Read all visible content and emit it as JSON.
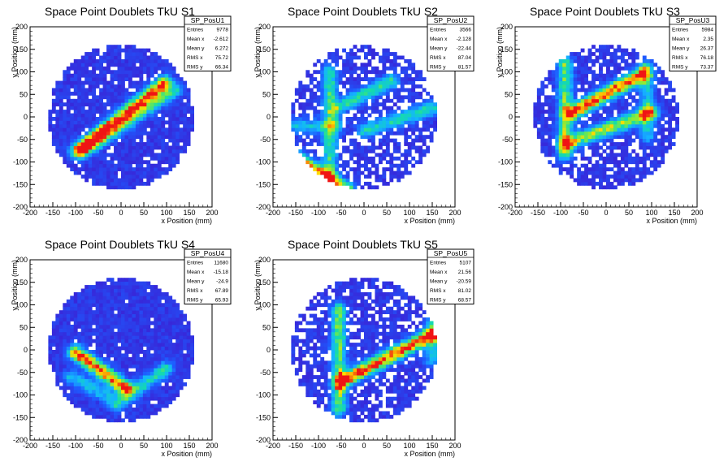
{
  "chart_data": [
    {
      "type": "heatmap",
      "title": "Space Point Doublets TkU S1",
      "xlabel": "x Position (mm)",
      "ylabel": "y Position (mm)",
      "xlim": [
        -200,
        200
      ],
      "ylim": [
        -200,
        200
      ],
      "xticks": [
        "-200",
        "-150",
        "-100",
        "-50",
        "0",
        "50",
        "100",
        "150",
        "200"
      ],
      "yticks": [
        "-200",
        "-150",
        "-100",
        "-50",
        "0",
        "50",
        "100",
        "150",
        "200"
      ],
      "detector_radius": 160,
      "bands": [
        {
          "x1": -95,
          "y1": -75,
          "x2": 95,
          "y2": 75,
          "weight": 1.0
        },
        {
          "x1": -80,
          "y1": -75,
          "x2": 120,
          "y2": 60,
          "weight": 0.45
        }
      ],
      "stats": {
        "name": "SP_PosU1",
        "rows": [
          {
            "label": "Entries",
            "value": "9778"
          },
          {
            "label": "Mean x",
            "value": "-2.612"
          },
          {
            "label": "Mean y",
            "value": "6.272"
          },
          {
            "label": "RMS x",
            "value": "75.72"
          },
          {
            "label": "RMS y",
            "value": "66.34"
          }
        ]
      }
    },
    {
      "type": "heatmap",
      "title": "Space Point Doublets TkU S2",
      "xlabel": "x Position (mm)",
      "ylabel": "y Position (mm)",
      "xlim": [
        -200,
        200
      ],
      "ylim": [
        -200,
        200
      ],
      "xticks": [
        "-200",
        "-150",
        "-100",
        "-50",
        "0",
        "50",
        "100",
        "150",
        "200"
      ],
      "yticks": [
        "-200",
        "-150",
        "-100",
        "-50",
        "0",
        "50",
        "100",
        "150",
        "200"
      ],
      "detector_radius": 160,
      "bands": [
        {
          "x1": -150,
          "y1": -90,
          "x2": -40,
          "y2": -160,
          "weight": 0.9
        },
        {
          "x1": -75,
          "y1": -140,
          "x2": -75,
          "y2": 100,
          "weight": 0.5
        },
        {
          "x1": -60,
          "y1": 20,
          "x2": 60,
          "y2": 80,
          "weight": 0.5
        },
        {
          "x1": 0,
          "y1": -30,
          "x2": 150,
          "y2": 20,
          "weight": 0.45
        },
        {
          "x1": -150,
          "y1": -20,
          "x2": -60,
          "y2": -20,
          "weight": 0.35
        }
      ],
      "stats": {
        "name": "SP_PosU2",
        "rows": [
          {
            "label": "Entries",
            "value": "3566"
          },
          {
            "label": "Mean x",
            "value": "-2.128"
          },
          {
            "label": "Mean y",
            "value": "-22.44"
          },
          {
            "label": "RMS x",
            "value": "87.04"
          },
          {
            "label": "RMS y",
            "value": "81.57"
          }
        ]
      }
    },
    {
      "type": "heatmap",
      "title": "Space Point Doublets TkU S3",
      "xlabel": "x Position (mm)",
      "ylabel": "y Position (mm)",
      "xlim": [
        -200,
        200
      ],
      "ylim": [
        -200,
        200
      ],
      "xticks": [
        "-200",
        "-150",
        "-100",
        "-50",
        "0",
        "50",
        "100",
        "150",
        "200"
      ],
      "yticks": [
        "-200",
        "-150",
        "-100",
        "-50",
        "0",
        "50",
        "100",
        "150",
        "200"
      ],
      "detector_radius": 160,
      "bands": [
        {
          "x1": -75,
          "y1": 10,
          "x2": 80,
          "y2": 95,
          "weight": 1.0
        },
        {
          "x1": -90,
          "y1": -60,
          "x2": 100,
          "y2": 10,
          "weight": 0.7
        },
        {
          "x1": -90,
          "y1": -80,
          "x2": -90,
          "y2": 120,
          "weight": 0.6
        },
        {
          "x1": 90,
          "y1": -40,
          "x2": 90,
          "y2": 110,
          "weight": 0.4
        }
      ],
      "stats": {
        "name": "SP_PosU3",
        "rows": [
          {
            "label": "Entries",
            "value": "5984"
          },
          {
            "label": "Mean x",
            "value": "2.35"
          },
          {
            "label": "Mean y",
            "value": "26.37"
          },
          {
            "label": "RMS x",
            "value": "76.18"
          },
          {
            "label": "RMS y",
            "value": "73.37"
          }
        ]
      }
    },
    {
      "type": "heatmap",
      "title": "Space Point Doublets TkU S4",
      "xlabel": "x Position (mm)",
      "ylabel": "y Position (mm)",
      "xlim": [
        -200,
        200
      ],
      "ylim": [
        -200,
        200
      ],
      "xticks": [
        "-200",
        "-150",
        "-100",
        "-50",
        "0",
        "50",
        "100",
        "150",
        "200"
      ],
      "yticks": [
        "-200",
        "-150",
        "-100",
        "-50",
        "0",
        "50",
        "100",
        "150",
        "200"
      ],
      "detector_radius": 160,
      "bands": [
        {
          "x1": -100,
          "y1": -5,
          "x2": 10,
          "y2": -85,
          "weight": 1.0
        },
        {
          "x1": -10,
          "y1": -120,
          "x2": 100,
          "y2": -40,
          "weight": 0.45
        },
        {
          "x1": -110,
          "y1": -60,
          "x2": -30,
          "y2": -100,
          "weight": 0.35
        }
      ],
      "stats": {
        "name": "SP_PosU4",
        "rows": [
          {
            "label": "Entries",
            "value": "11680"
          },
          {
            "label": "Mean x",
            "value": "-15.18"
          },
          {
            "label": "Mean y",
            "value": "-24.9"
          },
          {
            "label": "RMS x",
            "value": "67.89"
          },
          {
            "label": "RMS y",
            "value": "65.93"
          }
        ]
      }
    },
    {
      "type": "heatmap",
      "title": "Space Point Doublets TkU S5",
      "xlabel": "x Position (mm)",
      "ylabel": "y Position (mm)",
      "xlim": [
        -200,
        200
      ],
      "ylim": [
        -200,
        200
      ],
      "xticks": [
        "-200",
        "-150",
        "-100",
        "-50",
        "0",
        "50",
        "100",
        "150",
        "200"
      ],
      "yticks": [
        "-200",
        "-150",
        "-100",
        "-50",
        "0",
        "50",
        "100",
        "150",
        "200"
      ],
      "detector_radius": 160,
      "bands": [
        {
          "x1": -50,
          "y1": -70,
          "x2": 160,
          "y2": 40,
          "weight": 1.0
        },
        {
          "x1": -55,
          "y1": -130,
          "x2": -55,
          "y2": 90,
          "weight": 0.6
        },
        {
          "x1": 150,
          "y1": -20,
          "x2": 150,
          "y2": 60,
          "weight": 0.4
        }
      ],
      "stats": {
        "name": "SP_PosU5",
        "rows": [
          {
            "label": "Entries",
            "value": "5107"
          },
          {
            "label": "Mean x",
            "value": "21.56"
          },
          {
            "label": "Mean y",
            "value": "-20.59"
          },
          {
            "label": "RMS x",
            "value": "81.02"
          },
          {
            "label": "RMS y",
            "value": "68.57"
          }
        ]
      }
    }
  ]
}
